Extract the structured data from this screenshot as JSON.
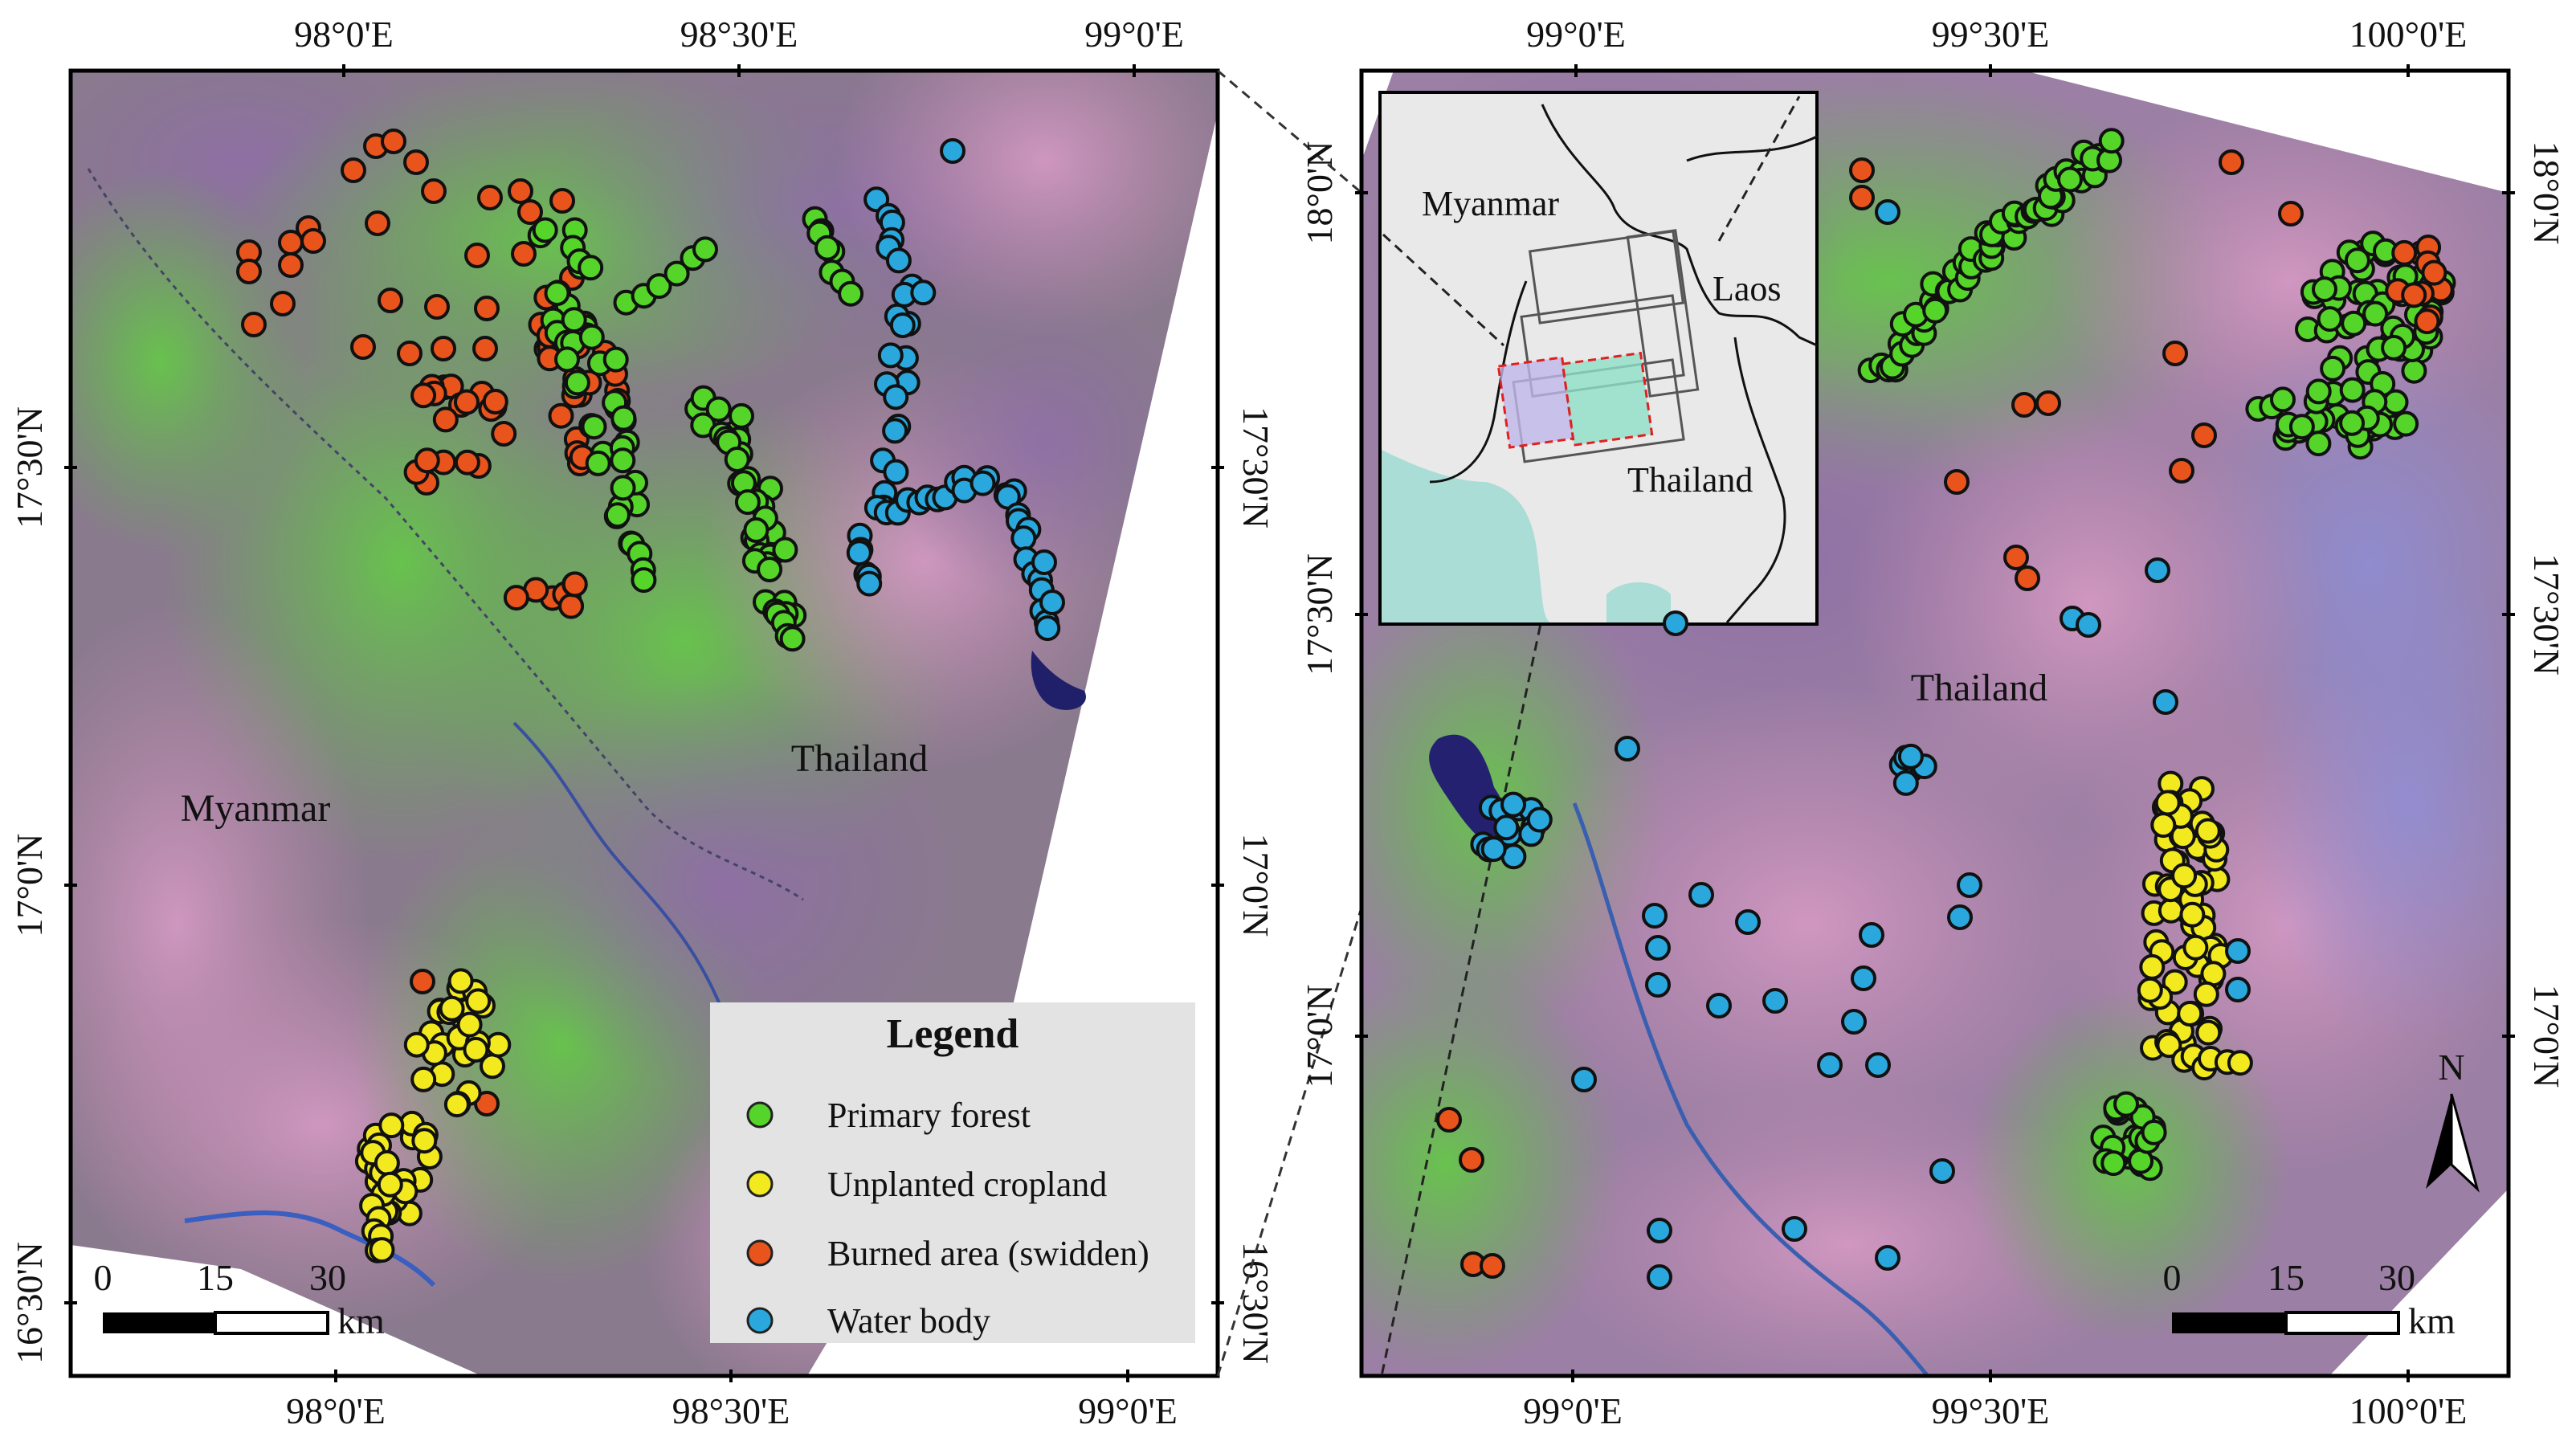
{
  "figure": {
    "left_map": {
      "top_ticks": [
        "98°0'E",
        "98°30'E",
        "99°0'E"
      ],
      "bottom_ticks": [
        "98°0'E",
        "98°30'E",
        "99°0'E"
      ],
      "left_ticks": [
        "17°30'N",
        "17°0'N",
        "16°30'N"
      ],
      "right_ticks": [
        "17°30'N",
        "17°0'N",
        "16°30'N"
      ],
      "labels": {
        "myanmar": "Myanmar",
        "thailand": "Thailand"
      },
      "scale_bar": {
        "ticks": [
          "0",
          "15",
          "30"
        ],
        "unit": "km"
      },
      "legend": {
        "title": "Legend",
        "items": [
          {
            "label": "Primary forest",
            "color": "#55d42a"
          },
          {
            "label": "Unplanted cropland",
            "color": "#f2ea1e"
          },
          {
            "label": "Burned area (swidden)",
            "color": "#e8541c"
          },
          {
            "label": "Water body",
            "color": "#2aa7dc"
          }
        ]
      }
    },
    "right_map": {
      "top_ticks": [
        "99°0'E",
        "99°30'E",
        "100°0'E"
      ],
      "bottom_ticks": [
        "99°0'E",
        "99°30'E",
        "100°0'E"
      ],
      "left_ticks": [
        "18°0'N",
        "17°30'N",
        "17°0'N"
      ],
      "right_ticks": [
        "18°0'N",
        "17°30'N",
        "17°0'N"
      ],
      "labels": {
        "thailand": "Thailand"
      },
      "inset": {
        "myanmar": "Myanmar",
        "laos": "Laos",
        "thailand": "Thailand"
      },
      "north_arrow": "N",
      "scale_bar": {
        "ticks": [
          "0",
          "15",
          "30"
        ],
        "unit": "km"
      }
    },
    "colors": {
      "forest_point": "#55d42a",
      "cropland_point": "#f2ea1e",
      "burned_point": "#e8541c",
      "water_point": "#2aa7dc",
      "imagery_green": "#5fb34a",
      "imagery_pink": "#c58ab0",
      "imagery_purple": "#8a6f9e"
    }
  }
}
